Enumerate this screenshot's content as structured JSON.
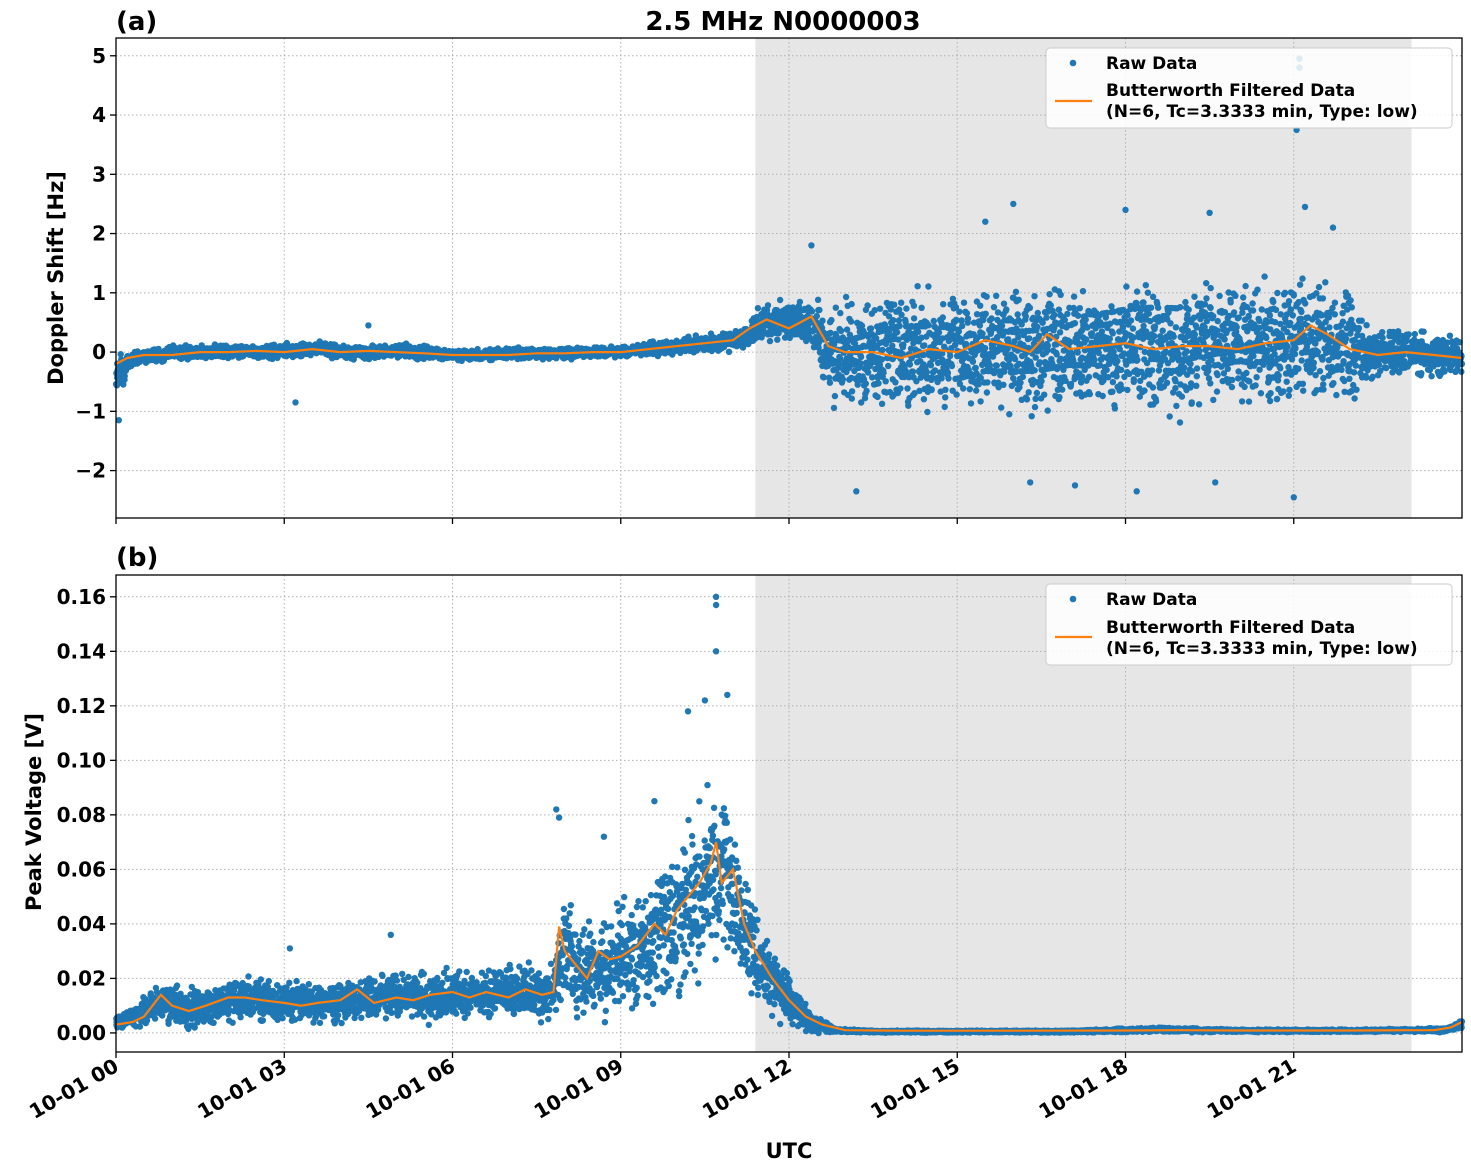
{
  "figure_title": "2.5 MHz N0000003",
  "xlabel": "UTC",
  "legend": {
    "raw": "Raw Data",
    "filtered_line1": "Butterworth Filtered Data",
    "filtered_line2": "(N=6, Tc=3.3333 min, Type: low)"
  },
  "colors": {
    "raw": "#1f77b4",
    "filtered": "#ff7f0e",
    "shade": "#e6e6e6",
    "grid": "#b0b0b0"
  },
  "chart_data": [
    {
      "type": "scatter",
      "panel_label": "(a)",
      "ylabel": "Doppler Shift [Hz]",
      "xlim": [
        "10-01 00:00",
        "10-01 24:00"
      ],
      "x_units": "hours UTC on 10-01",
      "ylim": [
        -2.8,
        5.3
      ],
      "yticks": [
        -2,
        -1,
        0,
        1,
        2,
        3,
        4,
        5
      ],
      "yticklabels": [
        "−2",
        "−1",
        "0",
        "1",
        "2",
        "3",
        "4",
        "5"
      ],
      "xticks": [
        0,
        3,
        6,
        9,
        12,
        15,
        18,
        21
      ],
      "xticklabels": [
        "10-01 00",
        "10-01 03",
        "10-01 06",
        "10-01 09",
        "10-01 12",
        "10-01 15",
        "10-01 18",
        "10-01 21"
      ],
      "grid": true,
      "legend_position": "upper right",
      "shaded_interval_hours": [
        11.4,
        23.1
      ],
      "series": [
        {
          "name": "Raw Data",
          "style": "markers",
          "x": [
            0.0,
            0.1,
            0.2,
            0.3,
            0.5,
            0.8,
            1.0,
            1.5,
            2.0,
            2.5,
            3.0,
            3.3,
            3.7,
            4.0,
            4.5,
            5.0,
            5.5,
            6.0,
            6.5,
            7.0,
            7.5,
            8.0,
            8.5,
            9.0,
            9.5,
            10.0,
            10.5,
            11.0,
            11.3,
            11.6,
            12.0,
            12.4,
            12.7,
            13.0,
            13.5,
            14.0,
            14.5,
            15.0,
            15.5,
            16.0,
            16.5,
            17.0,
            17.5,
            18.0,
            18.5,
            19.0,
            19.5,
            20.0,
            20.5,
            21.0,
            21.5,
            22.0,
            22.5,
            23.0,
            23.5,
            24.0
          ],
          "center": [
            -0.35,
            -0.3,
            -0.2,
            -0.12,
            -0.05,
            -0.05,
            0.0,
            0.0,
            0.02,
            0.0,
            0.02,
            0.03,
            0.05,
            0.0,
            0.0,
            0.02,
            0.0,
            -0.05,
            -0.05,
            -0.02,
            -0.04,
            -0.02,
            0.0,
            0.0,
            0.05,
            0.1,
            0.15,
            0.2,
            0.3,
            0.55,
            0.5,
            0.5,
            0.0,
            -0.05,
            0.0,
            0.1,
            0.05,
            0.0,
            0.1,
            0.05,
            0.05,
            0.1,
            0.05,
            0.1,
            0.1,
            0.05,
            0.1,
            0.15,
            0.1,
            0.2,
            0.25,
            0.1,
            -0.05,
            0.0,
            -0.05,
            -0.1
          ],
          "spread": [
            0.5,
            0.35,
            0.2,
            0.15,
            0.15,
            0.15,
            0.15,
            0.15,
            0.15,
            0.15,
            0.15,
            0.15,
            0.15,
            0.15,
            0.15,
            0.15,
            0.15,
            0.12,
            0.12,
            0.12,
            0.12,
            0.12,
            0.12,
            0.12,
            0.15,
            0.15,
            0.2,
            0.2,
            0.3,
            0.4,
            0.4,
            0.4,
            1.1,
            1.1,
            1.3,
            1.3,
            1.3,
            1.3,
            1.3,
            1.3,
            1.3,
            1.3,
            1.3,
            1.3,
            1.3,
            1.3,
            1.3,
            1.3,
            1.3,
            1.3,
            1.3,
            1.2,
            0.5,
            0.5,
            0.5,
            0.4
          ],
          "outliers": [
            [
              0.05,
              -1.15
            ],
            [
              3.2,
              -0.85
            ],
            [
              4.5,
              0.45
            ],
            [
              12.4,
              1.8
            ],
            [
              13.2,
              -2.35
            ],
            [
              15.5,
              2.2
            ],
            [
              16.0,
              2.5
            ],
            [
              16.3,
              -2.2
            ],
            [
              17.1,
              -2.25
            ],
            [
              18.0,
              2.4
            ],
            [
              18.2,
              -2.35
            ],
            [
              19.5,
              2.35
            ],
            [
              19.6,
              -2.2
            ],
            [
              21.1,
              4.95
            ],
            [
              21.1,
              4.8
            ],
            [
              21.05,
              3.75
            ],
            [
              21.2,
              2.45
            ],
            [
              21.0,
              -2.45
            ],
            [
              21.7,
              2.1
            ]
          ]
        },
        {
          "name": "Butterworth Filtered Data (N=6, Tc=3.3333 min, Type: low)",
          "style": "line",
          "x": [
            0.0,
            0.2,
            0.5,
            1.0,
            1.5,
            2.0,
            2.5,
            3.0,
            3.5,
            4.0,
            4.5,
            5.0,
            5.5,
            6.0,
            6.5,
            7.0,
            7.5,
            8.0,
            8.5,
            9.0,
            9.5,
            10.0,
            10.5,
            11.0,
            11.3,
            11.6,
            12.0,
            12.4,
            12.7,
            13.0,
            13.5,
            14.0,
            14.5,
            15.0,
            15.5,
            16.0,
            16.3,
            16.6,
            17.0,
            17.5,
            18.0,
            18.5,
            19.0,
            19.5,
            20.0,
            20.5,
            21.0,
            21.3,
            21.6,
            22.0,
            22.5,
            23.0,
            23.5,
            24.0
          ],
          "y": [
            -0.2,
            -0.1,
            -0.05,
            -0.05,
            0.0,
            0.0,
            0.02,
            0.0,
            0.05,
            0.0,
            0.02,
            0.0,
            -0.02,
            -0.05,
            -0.05,
            -0.05,
            -0.02,
            -0.02,
            0.0,
            0.0,
            0.05,
            0.1,
            0.15,
            0.2,
            0.4,
            0.55,
            0.4,
            0.6,
            0.1,
            0.0,
            0.0,
            -0.1,
            0.05,
            0.0,
            0.2,
            0.1,
            0.0,
            0.3,
            0.05,
            0.1,
            0.15,
            0.05,
            0.1,
            0.1,
            0.05,
            0.15,
            0.2,
            0.45,
            0.3,
            0.05,
            -0.05,
            0.0,
            -0.05,
            -0.1
          ]
        }
      ]
    },
    {
      "type": "scatter",
      "panel_label": "(b)",
      "ylabel": "Peak Voltage [V]",
      "xlim": [
        "10-01 00:00",
        "10-01 24:00"
      ],
      "x_units": "hours UTC on 10-01",
      "ylim": [
        -0.007,
        0.168
      ],
      "yticks": [
        0.0,
        0.02,
        0.04,
        0.06,
        0.08,
        0.1,
        0.12,
        0.14,
        0.16
      ],
      "yticklabels": [
        "0.00",
        "0.02",
        "0.04",
        "0.06",
        "0.08",
        "0.10",
        "0.12",
        "0.14",
        "0.16"
      ],
      "xticks": [
        0,
        3,
        6,
        9,
        12,
        15,
        18,
        21
      ],
      "xticklabels": [
        "10-01 00",
        "10-01 03",
        "10-01 06",
        "10-01 09",
        "10-01 12",
        "10-01 15",
        "10-01 18",
        "10-01 21"
      ],
      "grid": true,
      "legend_position": "upper right",
      "shaded_interval_hours": [
        11.4,
        23.1
      ],
      "series": [
        {
          "name": "Raw Data",
          "style": "markers",
          "x": [
            0.0,
            0.3,
            0.8,
            1.0,
            1.5,
            2.0,
            2.5,
            3.0,
            3.5,
            4.0,
            4.5,
            5.0,
            5.5,
            6.0,
            6.5,
            7.0,
            7.5,
            7.8,
            8.0,
            8.3,
            8.5,
            8.7,
            9.0,
            9.3,
            9.6,
            10.0,
            10.3,
            10.6,
            10.9,
            11.2,
            11.5,
            12.0,
            12.4,
            12.8,
            13.5,
            15.0,
            17.0,
            18.0,
            18.6,
            19.2,
            20.0,
            21.0,
            22.0,
            23.0,
            23.7,
            24.0
          ],
          "center": [
            0.004,
            0.006,
            0.012,
            0.01,
            0.009,
            0.012,
            0.013,
            0.011,
            0.01,
            0.011,
            0.013,
            0.014,
            0.013,
            0.014,
            0.014,
            0.016,
            0.015,
            0.015,
            0.032,
            0.02,
            0.025,
            0.023,
            0.028,
            0.03,
            0.035,
            0.043,
            0.05,
            0.06,
            0.055,
            0.04,
            0.025,
            0.012,
            0.004,
            0.001,
            0.0005,
            0.0005,
            0.0005,
            0.001,
            0.0012,
            0.001,
            0.0008,
            0.0008,
            0.0008,
            0.001,
            0.001,
            0.003
          ],
          "spread": [
            0.003,
            0.005,
            0.01,
            0.009,
            0.009,
            0.01,
            0.01,
            0.009,
            0.009,
            0.01,
            0.01,
            0.011,
            0.011,
            0.011,
            0.011,
            0.012,
            0.012,
            0.012,
            0.025,
            0.02,
            0.022,
            0.022,
            0.025,
            0.03,
            0.033,
            0.038,
            0.04,
            0.042,
            0.04,
            0.03,
            0.02,
            0.012,
            0.005,
            0.001,
            0.0005,
            0.0005,
            0.0005,
            0.001,
            0.001,
            0.001,
            0.0006,
            0.0006,
            0.0006,
            0.0008,
            0.001,
            0.002
          ],
          "outliers": [
            [
              7.85,
              0.082
            ],
            [
              7.9,
              0.079
            ],
            [
              8.7,
              0.072
            ],
            [
              9.6,
              0.085
            ],
            [
              10.2,
              0.118
            ],
            [
              10.5,
              0.122
            ],
            [
              10.7,
              0.16
            ],
            [
              10.7,
              0.157
            ],
            [
              10.7,
              0.14
            ],
            [
              10.9,
              0.124
            ],
            [
              3.1,
              0.031
            ],
            [
              4.9,
              0.036
            ]
          ]
        },
        {
          "name": "Butterworth Filtered Data (N=6, Tc=3.3333 min, Type: low)",
          "style": "line",
          "x": [
            0.0,
            0.3,
            0.5,
            0.8,
            1.0,
            1.3,
            1.6,
            2.0,
            2.3,
            2.6,
            3.0,
            3.3,
            3.6,
            4.0,
            4.3,
            4.6,
            5.0,
            5.3,
            5.6,
            6.0,
            6.3,
            6.6,
            7.0,
            7.3,
            7.6,
            7.8,
            7.9,
            8.0,
            8.2,
            8.4,
            8.6,
            8.8,
            9.0,
            9.3,
            9.6,
            9.8,
            10.0,
            10.2,
            10.4,
            10.6,
            10.7,
            10.8,
            11.0,
            11.2,
            11.4,
            11.7,
            12.0,
            12.3,
            12.6,
            13.0,
            14.0,
            16.0,
            18.0,
            19.0,
            20.0,
            22.0,
            23.0,
            23.5,
            23.8,
            24.0
          ],
          "y": [
            0.003,
            0.004,
            0.006,
            0.014,
            0.01,
            0.008,
            0.01,
            0.013,
            0.013,
            0.012,
            0.011,
            0.01,
            0.011,
            0.012,
            0.016,
            0.011,
            0.013,
            0.012,
            0.014,
            0.015,
            0.013,
            0.015,
            0.013,
            0.016,
            0.014,
            0.015,
            0.039,
            0.03,
            0.025,
            0.02,
            0.03,
            0.027,
            0.028,
            0.032,
            0.04,
            0.036,
            0.045,
            0.05,
            0.055,
            0.062,
            0.07,
            0.055,
            0.06,
            0.04,
            0.03,
            0.02,
            0.012,
            0.006,
            0.003,
            0.001,
            0.0008,
            0.0008,
            0.0009,
            0.001,
            0.0009,
            0.0009,
            0.001,
            0.001,
            0.002,
            0.004
          ]
        }
      ]
    }
  ]
}
